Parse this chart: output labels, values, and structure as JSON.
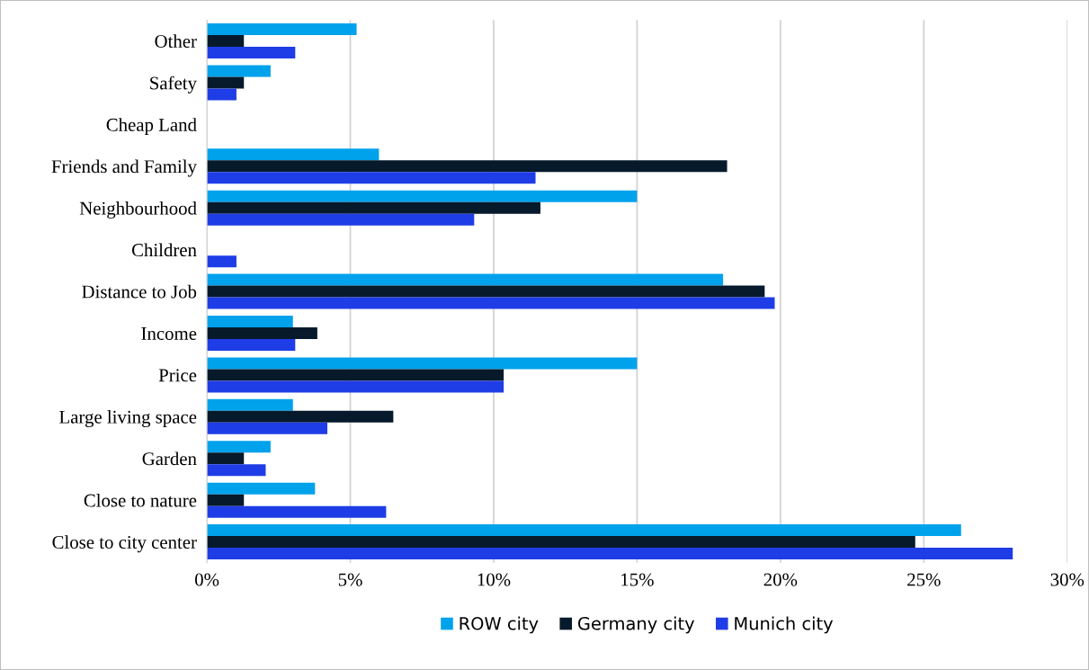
{
  "chart_data": {
    "type": "bar",
    "orientation": "horizontal",
    "categories": [
      "Other",
      "Safety",
      "Cheap Land",
      "Friends and Family",
      "Neighbourhood",
      "Children",
      "Distance to Job",
      "Income",
      "Price",
      "Large living space",
      "Garden",
      "Close to nature",
      "Close to city center"
    ],
    "series": [
      {
        "name": "ROW city",
        "color": "#00a2ec",
        "values": [
          5.22,
          2.22,
          0,
          6.0,
          15.0,
          0,
          18.0,
          3.0,
          15.0,
          3.0,
          2.22,
          3.77,
          26.3
        ]
      },
      {
        "name": "Germany city",
        "color": "#061a2c",
        "values": [
          1.29,
          1.29,
          0,
          18.14,
          11.63,
          0,
          19.45,
          3.85,
          10.35,
          6.5,
          1.29,
          1.29,
          24.7
        ]
      },
      {
        "name": "Munich city",
        "color": "#1f3de6",
        "values": [
          3.08,
          1.03,
          0,
          11.46,
          9.32,
          1.03,
          19.8,
          3.08,
          10.35,
          4.2,
          2.05,
          6.25,
          28.1
        ]
      }
    ],
    "xlim": [
      0,
      30
    ],
    "xticks": [
      {
        "value": 0,
        "label": "0%"
      },
      {
        "value": 5,
        "label": "5%"
      },
      {
        "value": 10,
        "label": "10%"
      },
      {
        "value": 15,
        "label": "15%"
      },
      {
        "value": 20,
        "label": "20%"
      },
      {
        "value": 25,
        "label": "25%"
      },
      {
        "value": 30,
        "label": "30%"
      }
    ],
    "grid": "x",
    "legend": "bottom"
  }
}
